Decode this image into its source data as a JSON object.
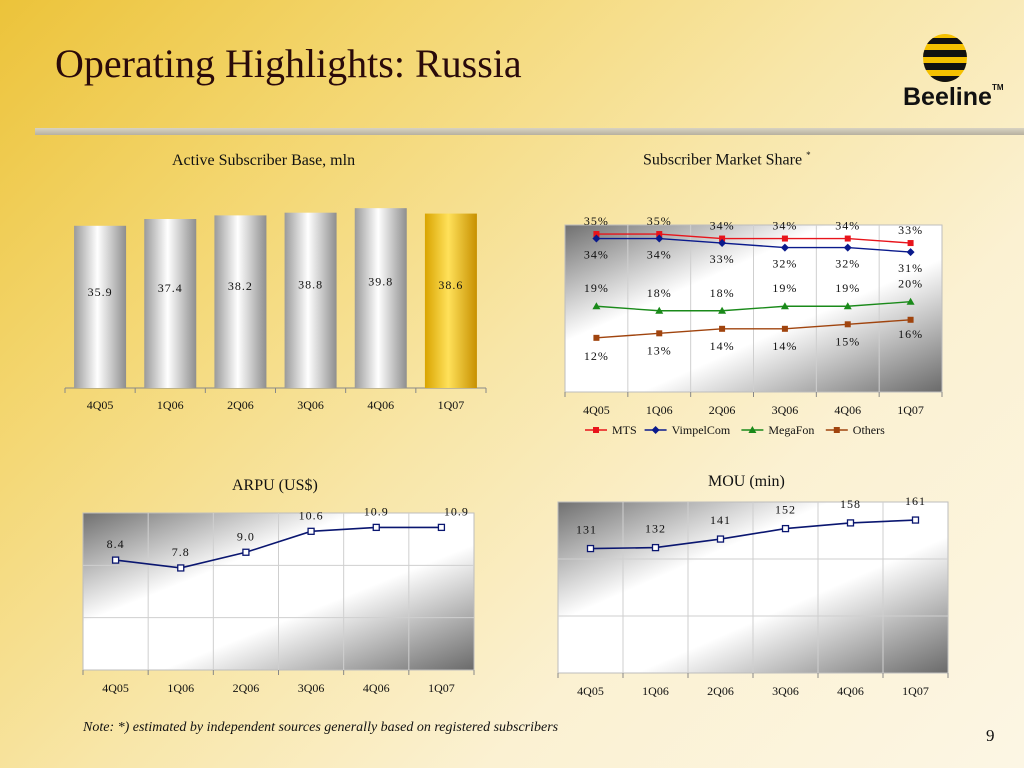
{
  "header": {
    "title": "Operating Highlights: Russia",
    "brand": "Beeline",
    "trademark": "TM"
  },
  "footer": {
    "note": "Note: *) estimated by independent sources generally based on registered subscribers",
    "page_number": "9"
  },
  "chart_data": [
    {
      "id": "subscribers",
      "type": "bar",
      "title": "Active Subscriber Base, mln",
      "categories": [
        "4Q05",
        "1Q06",
        "2Q06",
        "3Q06",
        "4Q06",
        "1Q07"
      ],
      "values": [
        35.9,
        37.4,
        38.2,
        38.8,
        39.8,
        38.6
      ],
      "value_labels": [
        "35.9",
        "37.4",
        "38.2",
        "38.8",
        "39.8",
        "38.6"
      ],
      "highlight_index": 5,
      "colors": {
        "bar": "#d8d8d8",
        "highlight": "#f0c000"
      }
    },
    {
      "id": "market_share",
      "type": "line",
      "title": "Subscriber Market Share",
      "title_marker": "*",
      "categories": [
        "4Q05",
        "1Q06",
        "2Q06",
        "3Q06",
        "4Q06",
        "1Q07"
      ],
      "ylim": [
        0,
        37
      ],
      "legend_position": "bottom",
      "series": [
        {
          "name": "MTS",
          "values": [
            35,
            35,
            34,
            34,
            34,
            33
          ],
          "labels": [
            "35%",
            "35%",
            "34%",
            "34%",
            "34%",
            "33%"
          ],
          "color": "#e8141b",
          "marker": "square"
        },
        {
          "name": "VimpelCom",
          "values": [
            34,
            34,
            33,
            32,
            32,
            31
          ],
          "labels": [
            "34%",
            "34%",
            "33%",
            "32%",
            "32%",
            "31%"
          ],
          "color": "#0a1a8c",
          "marker": "diamond"
        },
        {
          "name": "MegaFon",
          "values": [
            19,
            18,
            18,
            19,
            19,
            20
          ],
          "labels": [
            "19%",
            "18%",
            "18%",
            "19%",
            "19%",
            "20%"
          ],
          "color": "#1a8a1a",
          "marker": "triangle"
        },
        {
          "name": "Others",
          "values": [
            12,
            13,
            14,
            14,
            15,
            16
          ],
          "labels": [
            "12%",
            "13%",
            "14%",
            "14%",
            "15%",
            "16%"
          ],
          "color": "#a0440e",
          "marker": "square"
        }
      ]
    },
    {
      "id": "arpu",
      "type": "line",
      "title": "ARPU (US$)",
      "categories": [
        "4Q05",
        "1Q06",
        "2Q06",
        "3Q06",
        "4Q06",
        "1Q07"
      ],
      "ylim": [
        0,
        12
      ],
      "series": [
        {
          "values": [
            8.4,
            7.8,
            9.0,
            10.6,
            10.9,
            10.9
          ],
          "labels": [
            "8.4",
            "7.8",
            "9.0",
            "10.6",
            "10.9",
            "10.9"
          ],
          "color": "#0a1670"
        }
      ]
    },
    {
      "id": "mou",
      "type": "line",
      "title": "MOU (min)",
      "categories": [
        "4Q05",
        "1Q06",
        "2Q06",
        "3Q06",
        "4Q06",
        "1Q07"
      ],
      "ylim": [
        0,
        180
      ],
      "series": [
        {
          "values": [
            131,
            132,
            141,
            152,
            158,
            161
          ],
          "labels": [
            "131",
            "132",
            "141",
            "152",
            "158",
            "161"
          ],
          "color": "#0a1670"
        }
      ]
    }
  ]
}
